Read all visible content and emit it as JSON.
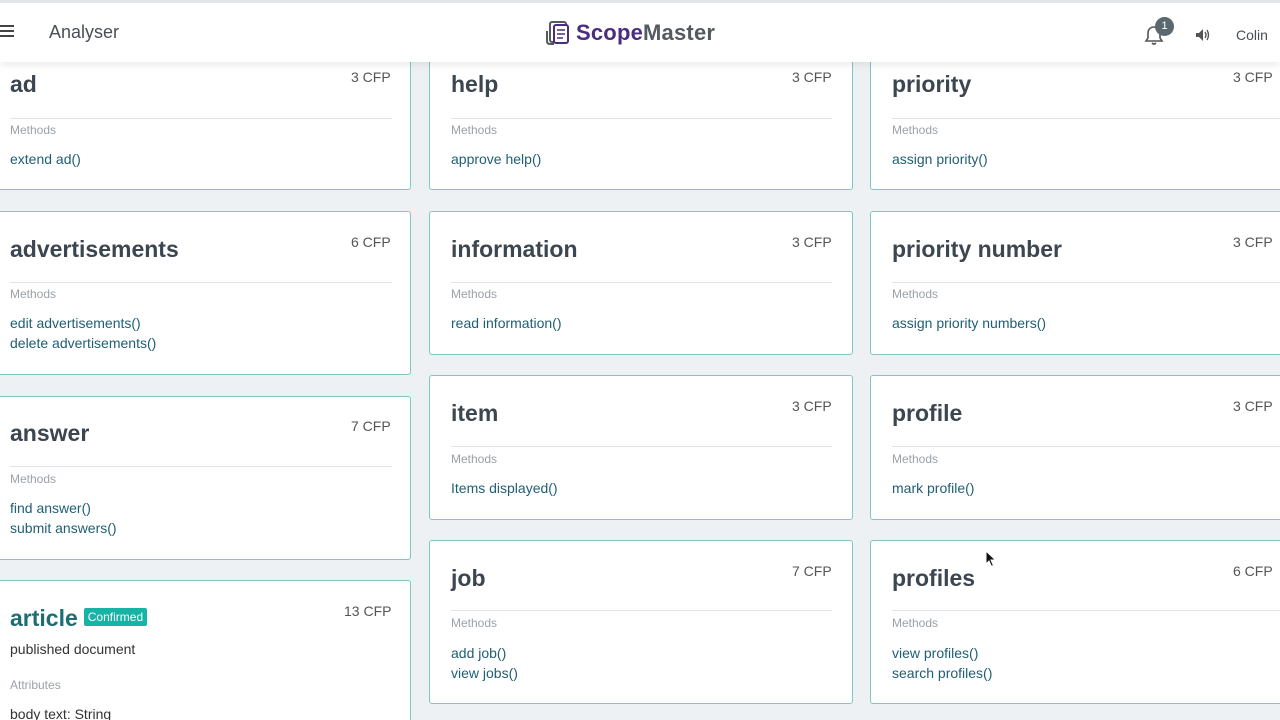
{
  "header": {
    "title": "Analyser",
    "logo_scope": "Scope",
    "logo_master": "Master",
    "notification_count": "1",
    "user": "Colin"
  },
  "colors": {
    "card_border": "#7fc6c4",
    "method_link": "#1f5e74",
    "confirmed_badge": "#17b3a4",
    "logo_purple": "#4b2c7f"
  },
  "cards": {
    "ad": {
      "title": "ad",
      "cfp": "3 CFP",
      "methods_label": "Methods",
      "methods": [
        "extend ad()"
      ]
    },
    "advertisements": {
      "title": "advertisements",
      "cfp": "6 CFP",
      "methods_label": "Methods",
      "methods": [
        "edit advertisements()",
        "delete advertisements()"
      ]
    },
    "answer": {
      "title": "answer",
      "cfp": "7 CFP",
      "methods_label": "Methods",
      "methods": [
        "find answer()",
        "submit answers()"
      ]
    },
    "article": {
      "title": "article",
      "badge": "Confirmed",
      "cfp": "13 CFP",
      "description": "published document",
      "attributes_label": "Attributes",
      "attr_name": "body text:",
      "attr_type": "String"
    },
    "help": {
      "title": "help",
      "cfp": "3 CFP",
      "methods_label": "Methods",
      "methods": [
        "approve help()"
      ]
    },
    "information": {
      "title": "information",
      "cfp": "3 CFP",
      "methods_label": "Methods",
      "methods": [
        "read information()"
      ]
    },
    "item": {
      "title": "item",
      "cfp": "3 CFP",
      "methods_label": "Methods",
      "methods": [
        "Items displayed()"
      ]
    },
    "job": {
      "title": "job",
      "cfp": "7 CFP",
      "methods_label": "Methods",
      "methods": [
        "add job()",
        "view jobs()"
      ]
    },
    "priority": {
      "title": "priority",
      "cfp": "3 CFP",
      "methods_label": "Methods",
      "methods": [
        "assign priority()"
      ]
    },
    "priority_number": {
      "title": "priority number",
      "cfp": "3 CFP",
      "methods_label": "Methods",
      "methods": [
        "assign priority numbers()"
      ]
    },
    "profile": {
      "title": "profile",
      "cfp": "3 CFP",
      "methods_label": "Methods",
      "methods": [
        "mark profile()"
      ]
    },
    "profiles": {
      "title": "profiles",
      "cfp": "6 CFP",
      "methods_label": "Methods",
      "methods": [
        "view profiles()",
        "search profiles()"
      ]
    }
  }
}
